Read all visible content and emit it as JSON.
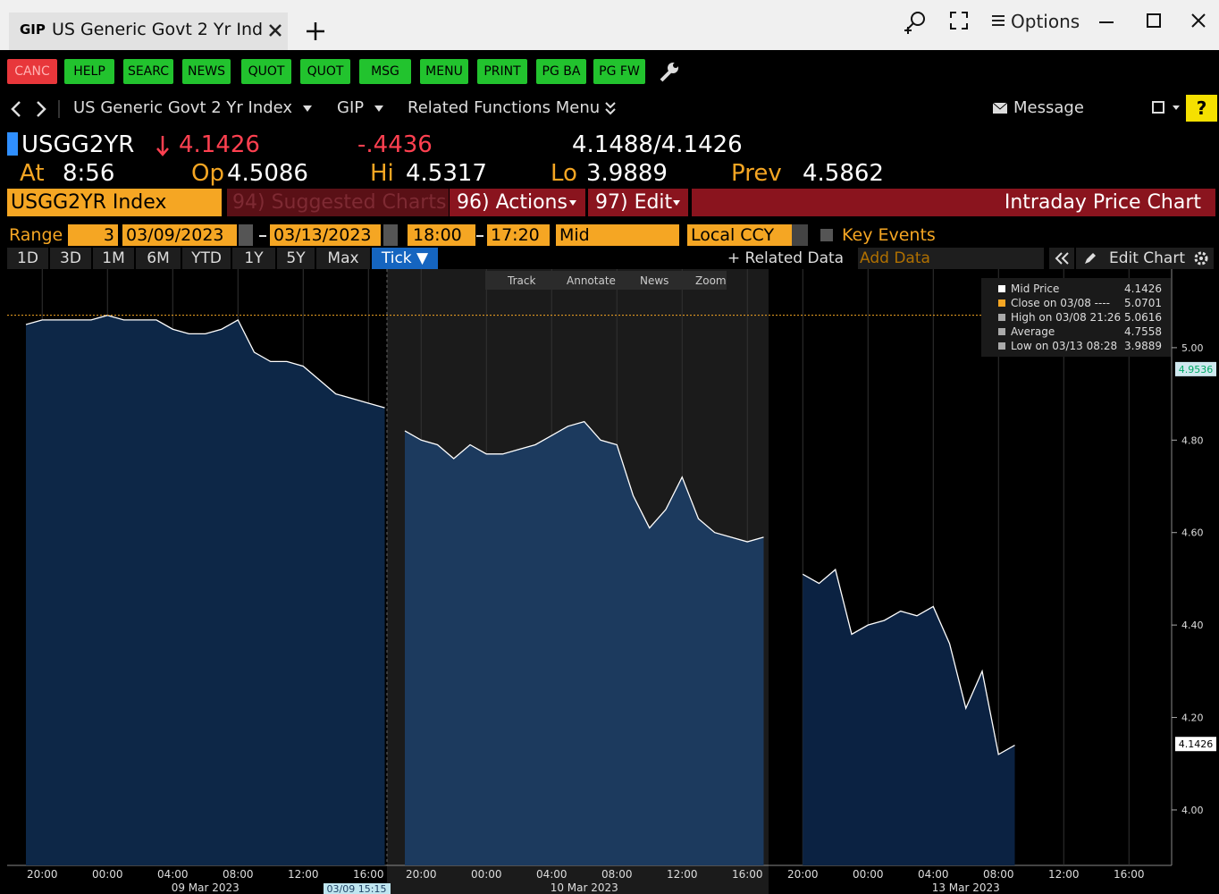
{
  "window": {
    "tab_icon": "GIP",
    "tab": "US Generic Govt 2 Yr Inde",
    "options": "Options"
  },
  "toolbar": [
    "CANC",
    "HELP",
    "SEARC",
    "NEWS",
    "QUOT",
    "QUOT",
    "MSG",
    "MENU",
    "PRINT",
    "PG BA",
    "PG FW"
  ],
  "nav": {
    "security": "US Generic Govt 2 Yr Index",
    "function": "GIP",
    "related": "Related Functions Menu",
    "message": "Message",
    "help": "?"
  },
  "quote": {
    "ticker": "USGG2YR",
    "last": "4.1426",
    "change": "-.4436",
    "bid_ask": "4.1488/4.1426",
    "at_label": "At",
    "time": "8:56",
    "open_label": "Op",
    "open": "4.5086",
    "hi_label": "Hi",
    "high": "4.5317",
    "lo_label": "Lo",
    "low": "3.9889",
    "prev_label": "Prev",
    "prev": "4.5862"
  },
  "menu": {
    "field": "USGG2YR Index",
    "suggested": "94) Suggested Charts",
    "actions": "96) Actions",
    "edit": "97) Edit",
    "title": "Intraday Price Chart"
  },
  "range": {
    "label": "Range",
    "n": "3",
    "start": "03/09/2023",
    "end": "03/13/2023",
    "t1": "18:00",
    "t2": "17:20",
    "field": "Mid",
    "ccy": "Local CCY",
    "key_events": "Key Events"
  },
  "periods": [
    "1D",
    "3D",
    "1M",
    "6M",
    "YTD",
    "1Y",
    "5Y",
    "Max",
    "Tick ▼"
  ],
  "chart_menu": {
    "related": "+ Related Data",
    "add": "Add Data",
    "edit": "Edit Chart"
  },
  "chart_tools": [
    "Track",
    "Annotate",
    "News",
    "Zoom"
  ],
  "chart_data": {
    "type": "area",
    "color": "#ffffff",
    "categories": [
      null,
      "20:00",
      null,
      null,
      null,
      "00:00",
      null,
      null,
      null,
      "04:00",
      null,
      null,
      null,
      "08:00",
      null,
      null,
      null,
      "12:00",
      null,
      null,
      null,
      "16:00",
      null,
      null,
      "20:00",
      null,
      null,
      null,
      "00:00",
      null,
      null,
      null,
      "04:00",
      null,
      null,
      null,
      "08:00",
      null,
      null,
      null,
      "12:00",
      null,
      null,
      null,
      "16:00",
      null,
      null,
      "20:00",
      null,
      null,
      null,
      "00:00",
      null,
      null,
      null,
      "04:00",
      null,
      null,
      null,
      "08:00",
      null,
      null,
      null,
      "12:00",
      null,
      null,
      null,
      "16:00",
      null
    ],
    "groups": [
      "09 Mar 2023",
      "10 Mar 2023",
      "13 Mar 2023"
    ],
    "values": [
      5.05,
      5.06,
      5.06,
      5.06,
      5.06,
      5.07,
      5.06,
      5.06,
      5.06,
      5.04,
      5.03,
      5.03,
      5.04,
      5.06,
      4.99,
      4.97,
      4.97,
      4.96,
      4.93,
      4.9,
      4.89,
      4.88,
      4.87,
      4.82,
      4.8,
      4.79,
      4.76,
      4.79,
      4.77,
      4.77,
      4.78,
      4.79,
      4.81,
      4.83,
      4.84,
      4.8,
      4.79,
      4.68,
      4.61,
      4.65,
      4.72,
      4.63,
      4.6,
      4.59,
      4.58,
      4.59,
      null,
      4.51,
      4.49,
      4.52,
      4.38,
      4.4,
      4.41,
      4.43,
      4.42,
      4.44,
      4.36,
      4.22,
      4.3,
      4.12,
      4.14,
      null,
      null,
      null,
      null,
      null,
      null,
      null,
      null
    ],
    "ylim": [
      3.88,
      5.17
    ],
    "yticks": [
      {
        "value": 4,
        "label": "4.00"
      },
      {
        "value": 4.2,
        "label": "4.20"
      },
      {
        "value": 4.4,
        "label": "4.40"
      },
      {
        "value": 4.6,
        "label": "4.60"
      },
      {
        "value": 4.8,
        "label": "4.80"
      },
      {
        "value": 5,
        "label": "5.00"
      }
    ],
    "legend": [
      {
        "name": "Mid Price",
        "value": 4.1426,
        "color": "#ffffff"
      },
      {
        "name": "Close on 03/08 ----",
        "value": 5.0701,
        "color": "#f5a623"
      },
      {
        "name": "High on 03/08 21:26",
        "value": 5.0616,
        "color": "#aaaaaa"
      },
      {
        "name": "Average",
        "value": 4.7558,
        "color": "#aaaaaa"
      },
      {
        "name": "Low on 03/13 08:28",
        "value": 3.9889,
        "color": "#aaaaaa"
      }
    ],
    "markers": [
      4.9536,
      4.1426
    ],
    "cursor_label": "03/09 15:15"
  }
}
